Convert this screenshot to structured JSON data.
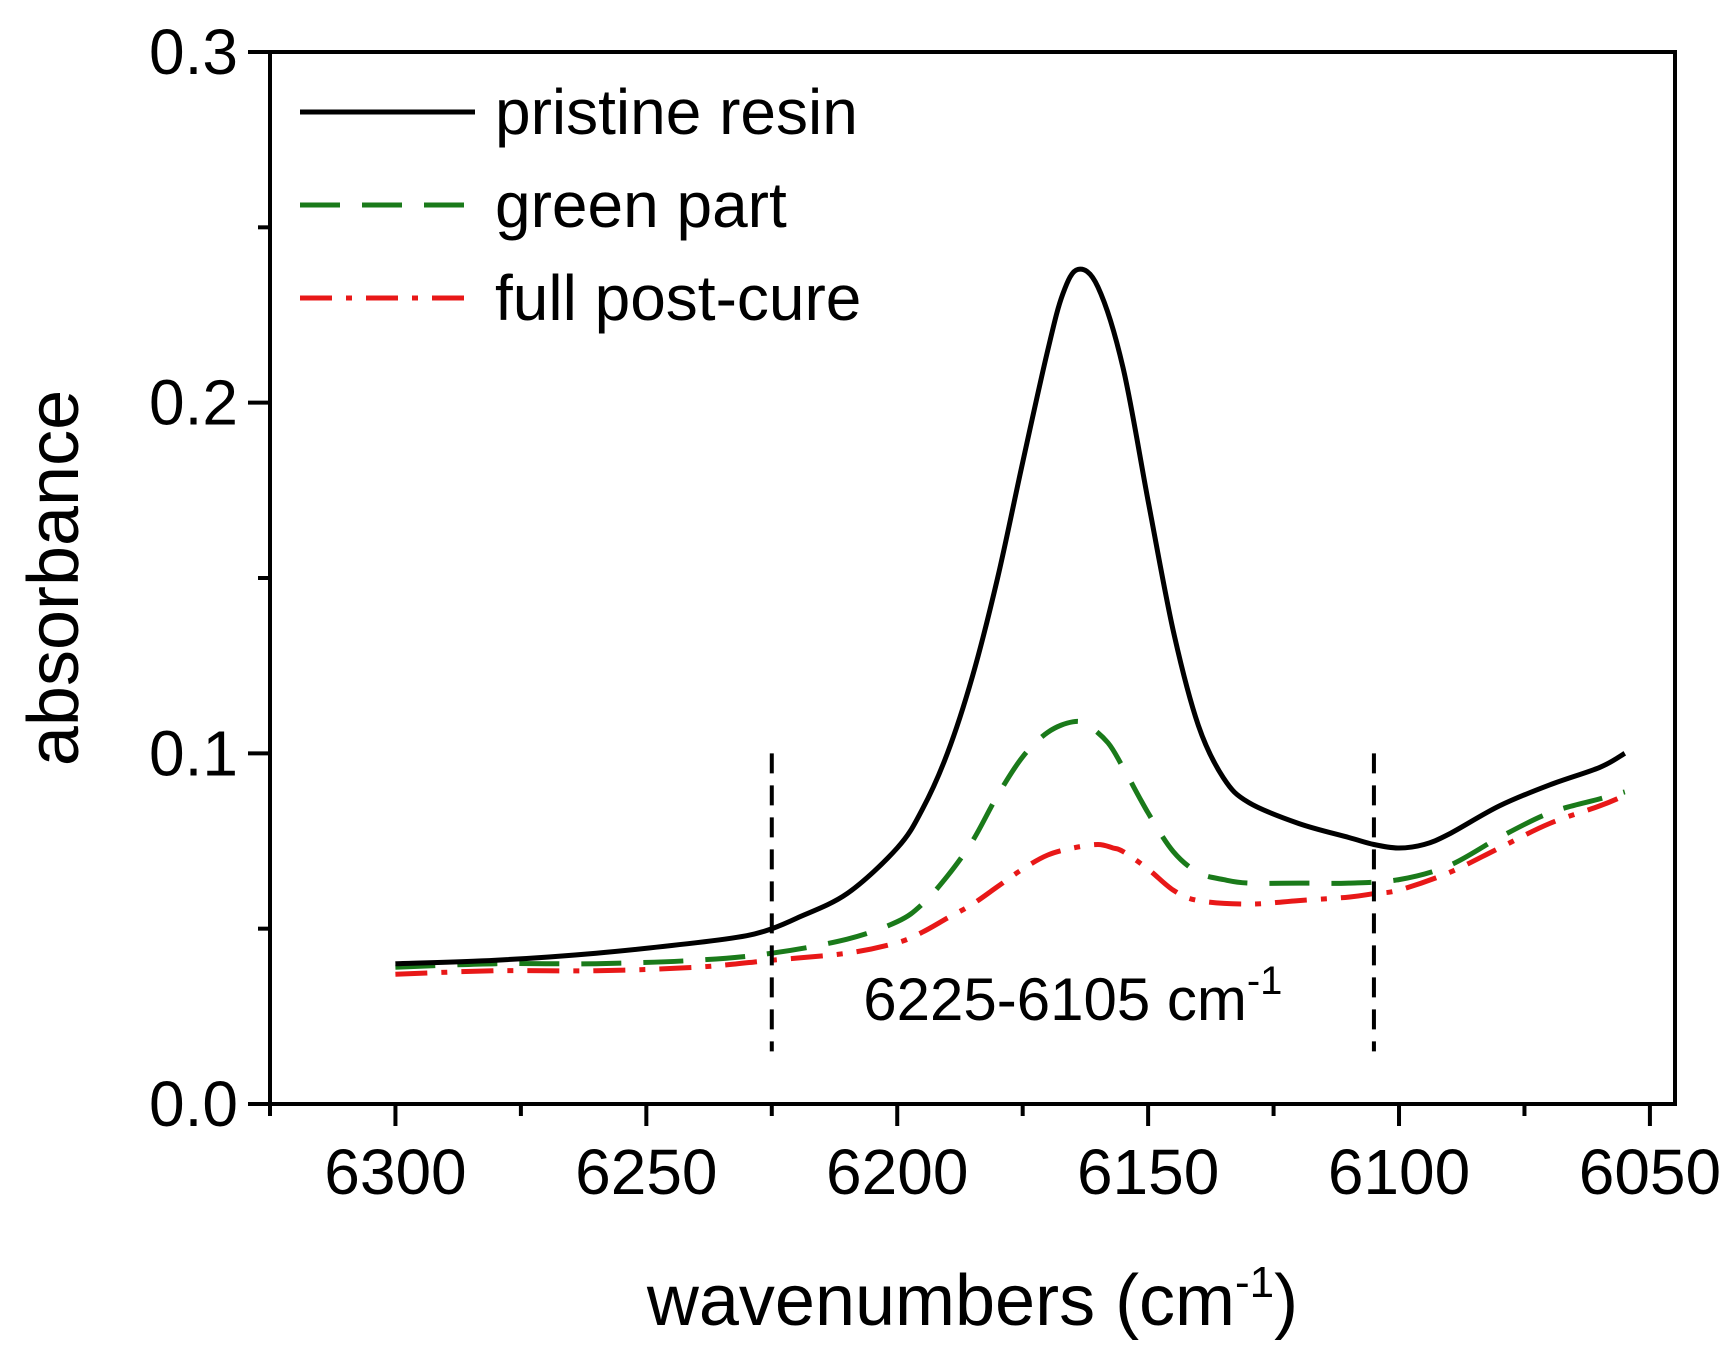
{
  "chart_data": {
    "type": "line",
    "title": "",
    "xlabel": "wavenumbers (cm",
    "xlabel_sup": "-1",
    "xlabel_tail": ")",
    "ylabel": "absorbance",
    "xlim": [
      6325,
      6045
    ],
    "ylim": [
      0.0,
      0.3
    ],
    "x_ticks": [
      6300,
      6250,
      6200,
      6150,
      6100,
      6050
    ],
    "x_tick_labels": [
      "6300",
      "6250",
      "6200",
      "6150",
      "6100",
      "6050"
    ],
    "y_ticks": [
      0.0,
      0.1,
      0.2,
      0.3
    ],
    "y_tick_labels": [
      "0.0",
      "0.1",
      "0.2",
      "0.3"
    ],
    "legend_position": "top-left",
    "series": [
      {
        "name": "pristine resin",
        "color": "#000000",
        "style": "solid",
        "x": [
          6300,
          6280,
          6260,
          6240,
          6230,
          6225,
          6220,
          6210,
          6200,
          6195,
          6190,
          6185,
          6180,
          6175,
          6170,
          6167,
          6164,
          6160,
          6155,
          6150,
          6145,
          6140,
          6135,
          6130,
          6120,
          6110,
          6105,
          6100,
          6095,
          6090,
          6080,
          6070,
          6060,
          6055
        ],
        "values": [
          0.04,
          0.041,
          0.043,
          0.046,
          0.048,
          0.05,
          0.053,
          0.06,
          0.073,
          0.084,
          0.1,
          0.122,
          0.15,
          0.183,
          0.215,
          0.231,
          0.238,
          0.233,
          0.21,
          0.172,
          0.135,
          0.108,
          0.093,
          0.086,
          0.08,
          0.076,
          0.074,
          0.073,
          0.074,
          0.077,
          0.085,
          0.091,
          0.096,
          0.1
        ]
      },
      {
        "name": "green part",
        "color": "#1a7a1a",
        "style": "dashed",
        "x": [
          6300,
          6280,
          6260,
          6240,
          6225,
          6210,
          6200,
          6195,
          6190,
          6185,
          6180,
          6175,
          6170,
          6165,
          6162,
          6158,
          6155,
          6150,
          6145,
          6140,
          6135,
          6130,
          6120,
          6110,
          6100,
          6090,
          6080,
          6070,
          6060,
          6055
        ],
        "values": [
          0.039,
          0.04,
          0.04,
          0.041,
          0.043,
          0.047,
          0.052,
          0.057,
          0.065,
          0.075,
          0.088,
          0.099,
          0.106,
          0.109,
          0.108,
          0.103,
          0.096,
          0.083,
          0.072,
          0.066,
          0.064,
          0.063,
          0.063,
          0.063,
          0.064,
          0.068,
          0.076,
          0.083,
          0.087,
          0.089
        ]
      },
      {
        "name": "full post-cure",
        "color": "#e81818",
        "style": "dashdot",
        "x": [
          6300,
          6280,
          6260,
          6240,
          6225,
          6210,
          6200,
          6195,
          6190,
          6185,
          6180,
          6175,
          6170,
          6165,
          6160,
          6157,
          6155,
          6150,
          6145,
          6140,
          6130,
          6120,
          6110,
          6105,
          6100,
          6090,
          6080,
          6070,
          6060,
          6055
        ],
        "values": [
          0.037,
          0.038,
          0.038,
          0.039,
          0.041,
          0.043,
          0.046,
          0.049,
          0.053,
          0.057,
          0.062,
          0.067,
          0.071,
          0.073,
          0.074,
          0.073,
          0.072,
          0.067,
          0.061,
          0.058,
          0.057,
          0.058,
          0.059,
          0.06,
          0.061,
          0.066,
          0.073,
          0.08,
          0.085,
          0.088
        ]
      }
    ],
    "annotations": {
      "markers": [
        {
          "name": "lower-bound",
          "x": 6225,
          "y_range": [
            0.015,
            0.1
          ]
        },
        {
          "name": "upper-bound",
          "x": 6105,
          "y_range": [
            0.015,
            0.1
          ]
        }
      ],
      "range_label": "6225-6105 cm",
      "range_label_sup": "-1",
      "range_label_x": 6165,
      "range_label_y": 0.024
    }
  }
}
